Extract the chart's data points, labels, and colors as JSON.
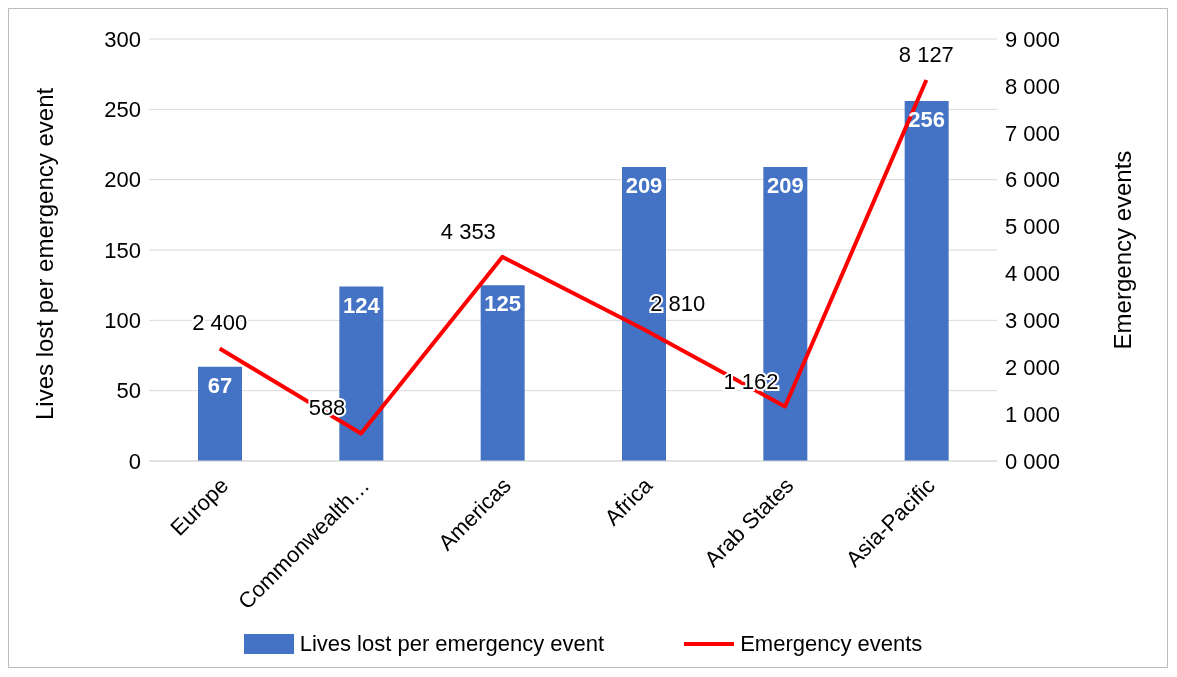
{
  "chart_data": {
    "type": "bar",
    "categories": [
      "Europe",
      "Commonwealth…",
      "Americas",
      "Africa",
      "Arab States",
      "Asia-Pacific"
    ],
    "ylabel": "Lives lost per emergency event",
    "y2label": "Emergency events",
    "ylim": [
      0,
      300
    ],
    "yticks": [
      0,
      50,
      100,
      150,
      200,
      250,
      300
    ],
    "y2lim": [
      0,
      9000
    ],
    "y2ticks": [
      {
        "value": 0,
        "label": "0 000"
      },
      {
        "value": 1000,
        "label": "1 000"
      },
      {
        "value": 2000,
        "label": "2 000"
      },
      {
        "value": 3000,
        "label": "3 000"
      },
      {
        "value": 4000,
        "label": "4 000"
      },
      {
        "value": 5000,
        "label": "5 000"
      },
      {
        "value": 6000,
        "label": "6 000"
      },
      {
        "value": 7000,
        "label": "7 000"
      },
      {
        "value": 8000,
        "label": "8 000"
      },
      {
        "value": 9000,
        "label": "9 000"
      }
    ],
    "grid": "y",
    "legend": "bottom",
    "data_labels": true,
    "marker": "none",
    "line_style": "solid",
    "series": [
      {
        "name": "Lives lost per emergency event",
        "color": "#4472c4",
        "values": [
          67,
          124,
          125,
          209,
          209,
          256
        ]
      },
      {
        "name": "Emergency events",
        "type": "line",
        "axis": "y2",
        "color": "#ff0000",
        "values": [
          2400,
          588,
          4353,
          2810,
          1162,
          8127
        ],
        "value_labels": [
          "2 400",
          "588",
          "4 353",
          "2 810",
          "1 162",
          "8 127"
        ]
      }
    ]
  }
}
